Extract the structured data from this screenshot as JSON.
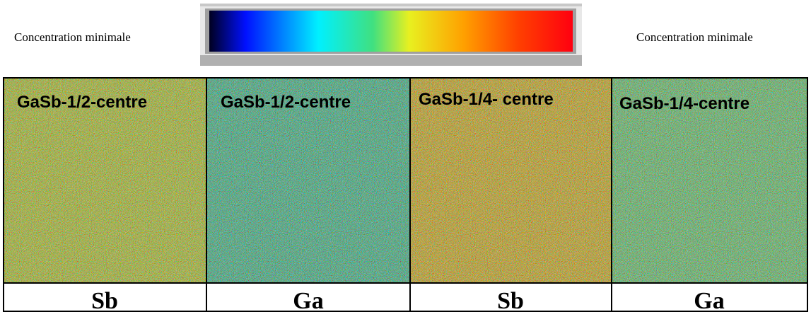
{
  "colorbar": {
    "left_label": "Concentration minimale",
    "right_label": "Concentration minimale"
  },
  "panels": [
    {
      "title": "GaSb-1/2-centre",
      "element": "Sb"
    },
    {
      "title": "GaSb-1/2-centre",
      "element": "Ga"
    },
    {
      "title": "GaSb-1/4- centre",
      "element": "Sb"
    },
    {
      "title": "GaSb-1/4-centre",
      "element": "Ga"
    }
  ]
}
